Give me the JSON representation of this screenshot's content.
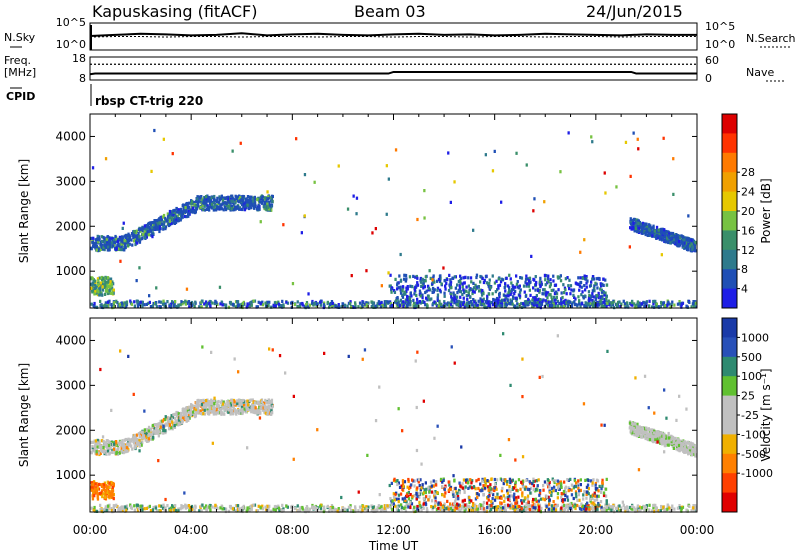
{
  "header": {
    "site": "Kapuskasing (fitACF)",
    "beam": "Beam 03",
    "date": "24/Jun/2015"
  },
  "side_labels": {
    "nsky": "N.Sky",
    "nsearch": "N.Search",
    "freq": "Freq.",
    "freq_unit": "[MHz]",
    "nave": "Nave",
    "cpid": "CPID",
    "cpid_value": "rbsp CT-trig 220"
  },
  "colors": {
    "power": [
      "#1e1ee6",
      "#1f4fb5",
      "#2e7a8c",
      "#3a8f6a",
      "#77c242",
      "#e6c800",
      "#f0a000",
      "#ff7a00",
      "#ff3300",
      "#dd0000"
    ],
    "velocity": [
      "#1a3aa8",
      "#2850b8",
      "#2e8a70",
      "#60c030",
      "#c0c0c0",
      "#c0c0c0",
      "#f0b000",
      "#ff8000",
      "#ff4000",
      "#e00000"
    ]
  },
  "chart_data": [
    {
      "type": "line",
      "panel": "noise",
      "left_ticks": [
        "10^5",
        "10^0"
      ],
      "right_ticks": [
        "10^5",
        "10^0"
      ],
      "series": [
        {
          "name": "N.Sky",
          "values": [
            2.6,
            2.8,
            3.0,
            2.9,
            2.7,
            2.8,
            3.1,
            2.7,
            2.9,
            3.0,
            2.8,
            2.7,
            2.9,
            3.0,
            2.8,
            2.9,
            2.7,
            2.8,
            3.0,
            2.9,
            2.8,
            2.7,
            2.9,
            2.8,
            2.8
          ]
        },
        {
          "name": "N.Search",
          "values": [
            2.4,
            2.5,
            2.5,
            2.4,
            2.5,
            2.5,
            2.4,
            2.5,
            2.5,
            2.4,
            2.5,
            2.5,
            2.4,
            2.5,
            2.5,
            2.4,
            2.5,
            2.5,
            2.4,
            2.5,
            2.5,
            2.4,
            2.5,
            2.5,
            2.5
          ]
        }
      ],
      "ylim_log10": [
        0,
        5
      ]
    },
    {
      "type": "line",
      "panel": "frequency",
      "left_ticks": [
        "18",
        "8"
      ],
      "right_ticks": [
        "60",
        "0"
      ],
      "series": [
        {
          "name": "Freq.",
          "x_hours": [
            0,
            0.2,
            11.8,
            12.0,
            21.4,
            21.6,
            24
          ],
          "values": [
            10.5,
            10.8,
            10.8,
            11.5,
            11.5,
            10.8,
            10.8
          ]
        },
        {
          "name": "Nave",
          "x_hours": [
            0,
            24
          ],
          "values": [
            41,
            41
          ]
        }
      ],
      "ylim": [
        8,
        18
      ],
      "ylim_right": [
        0,
        60
      ]
    },
    {
      "type": "heatmap",
      "panel": "power",
      "xlabel": "",
      "ylabel": "Slant Range [km]",
      "xlim_hours": [
        0,
        24
      ],
      "ylim": [
        180,
        4500
      ],
      "yticks": [
        1000,
        2000,
        3000,
        4000
      ],
      "colorbar_label": "Power [dB]",
      "colorbar_ticks": [
        "4",
        "8",
        "12",
        "16",
        "20",
        "24",
        "28"
      ],
      "seed": 7
    },
    {
      "type": "heatmap",
      "panel": "velocity",
      "xlabel": "Time UT",
      "ylabel": "Slant Range [km]",
      "xlim_hours": [
        0,
        24
      ],
      "ylim": [
        180,
        4500
      ],
      "yticks": [
        1000,
        2000,
        3000,
        4000
      ],
      "xticks": [
        "00:00",
        "04:00",
        "08:00",
        "12:00",
        "16:00",
        "20:00",
        "00:00"
      ],
      "colorbar_label": "Velocity [m s⁻¹]",
      "colorbar_ticks": [
        "1000",
        "500",
        "100",
        "25",
        "-25",
        "-100",
        "-500",
        "-1000"
      ],
      "seed": 7
    }
  ]
}
